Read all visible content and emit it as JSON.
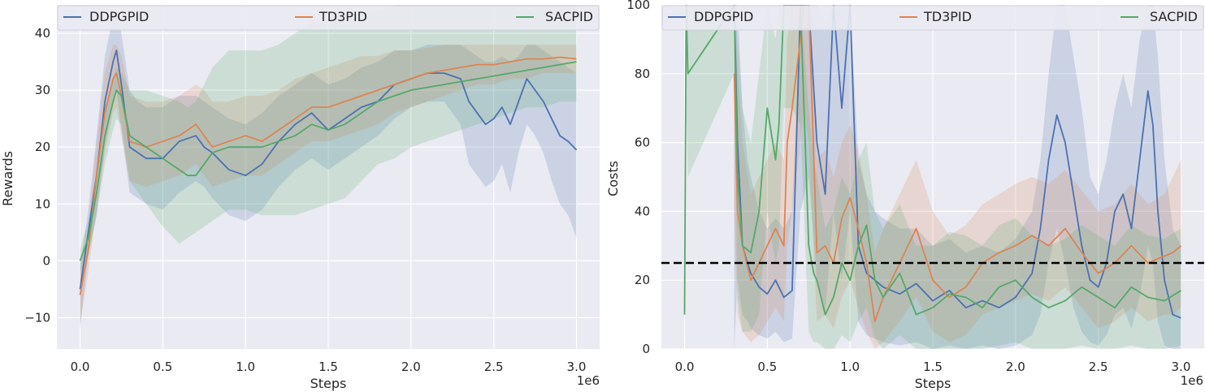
{
  "colors": {
    "plot_bg": "#eaeaf2",
    "grid": "#ffffff",
    "DDPGPID": "#4c72b0",
    "TD3PID": "#dd8452",
    "SACPID": "#55a868",
    "threshold": "#000000"
  },
  "chart_data": [
    {
      "type": "line",
      "xlabel": "Steps",
      "ylabel": "Rewards",
      "x_offset_label": "1e6",
      "xlim": [
        -0.14,
        3.14
      ],
      "ylim": [
        -15.5,
        45
      ],
      "xticks": [
        0.0,
        0.5,
        1.0,
        1.5,
        2.0,
        2.5,
        3.0
      ],
      "xtick_labels": [
        "0.0",
        "0.5",
        "1.0",
        "1.5",
        "2.0",
        "2.5",
        "3.0"
      ],
      "yticks": [
        -10,
        0,
        10,
        20,
        30,
        40
      ],
      "ytick_labels": [
        "−10",
        "0",
        "10",
        "20",
        "30",
        "40"
      ],
      "grid": true,
      "legend": {
        "placement": "top",
        "entries": [
          "DDPGPID",
          "TD3PID",
          "SACPID"
        ]
      },
      "series": [
        {
          "name": "DDPGPID",
          "x": [
            0.0,
            0.05,
            0.1,
            0.15,
            0.2,
            0.22,
            0.25,
            0.3,
            0.35,
            0.4,
            0.5,
            0.6,
            0.7,
            0.75,
            0.8,
            0.9,
            1.0,
            1.1,
            1.2,
            1.3,
            1.4,
            1.5,
            1.6,
            1.7,
            1.8,
            1.9,
            2.0,
            2.1,
            2.2,
            2.3,
            2.35,
            2.4,
            2.45,
            2.5,
            2.55,
            2.6,
            2.65,
            2.7,
            2.75,
            2.8,
            2.85,
            2.9,
            2.95,
            3.0
          ],
          "values": [
            -5,
            5,
            15,
            28,
            35,
            37,
            31,
            20,
            19,
            18,
            18,
            21,
            22,
            20,
            19,
            16,
            15,
            17,
            21,
            24,
            26,
            23,
            25,
            27,
            28,
            31,
            32,
            33,
            33,
            32,
            28,
            26,
            24,
            25,
            27,
            24,
            28,
            32,
            30,
            28,
            25,
            22,
            21,
            19.5
          ],
          "upper": [
            -1,
            9,
            22,
            36,
            43,
            44,
            40,
            30,
            28,
            27,
            27,
            29,
            29,
            28,
            27,
            25,
            24,
            26,
            29,
            31,
            33,
            31,
            32,
            34,
            35,
            37,
            37,
            38,
            38,
            38,
            37,
            36,
            35,
            35,
            36,
            35,
            36,
            38,
            38,
            37,
            36,
            35,
            34,
            33
          ],
          "lower": [
            -12,
            1,
            8,
            20,
            28,
            30,
            23,
            12,
            11,
            10,
            9,
            12,
            14,
            13,
            11,
            8,
            7,
            9,
            13,
            16,
            18,
            16,
            18,
            20,
            22,
            25,
            27,
            28,
            28,
            24,
            17,
            15,
            13,
            14,
            17,
            12,
            19,
            24,
            22,
            19,
            14,
            10,
            8,
            4
          ]
        },
        {
          "name": "TD3PID",
          "x": [
            0.0,
            0.05,
            0.1,
            0.15,
            0.2,
            0.22,
            0.25,
            0.3,
            0.4,
            0.5,
            0.6,
            0.65,
            0.7,
            0.75,
            0.8,
            0.9,
            1.0,
            1.1,
            1.2,
            1.3,
            1.4,
            1.5,
            1.6,
            1.7,
            1.8,
            1.9,
            2.0,
            2.1,
            2.2,
            2.3,
            2.4,
            2.5,
            2.6,
            2.7,
            2.8,
            2.9,
            3.0
          ],
          "values": [
            -6,
            2,
            15,
            26,
            32,
            33,
            29,
            21,
            20,
            21,
            22,
            23,
            24,
            22,
            20,
            21,
            22,
            21,
            23,
            25,
            27,
            27,
            28,
            29,
            30,
            31,
            32,
            33,
            33.5,
            34,
            34.5,
            34.5,
            35,
            35.5,
            35.5,
            35.8,
            35.5
          ],
          "upper": [
            -2,
            6,
            21,
            33,
            38,
            38,
            36,
            29,
            28,
            28,
            29,
            30,
            31,
            30,
            28,
            28,
            29,
            29,
            30,
            32,
            33,
            34,
            35,
            36,
            36,
            37,
            37,
            37.5,
            38,
            38,
            38,
            38,
            38,
            38,
            38,
            38,
            38
          ],
          "lower": [
            -11,
            -2,
            9,
            19,
            26,
            27,
            22,
            14,
            13,
            14,
            15,
            16,
            17,
            15,
            13,
            14,
            15,
            15,
            17,
            19,
            21,
            21,
            22,
            23,
            24,
            26,
            27,
            28,
            29,
            30,
            31,
            31,
            32,
            32,
            33,
            33,
            33
          ]
        },
        {
          "name": "SACPID",
          "x": [
            0.0,
            0.05,
            0.1,
            0.15,
            0.2,
            0.22,
            0.25,
            0.3,
            0.4,
            0.5,
            0.6,
            0.65,
            0.7,
            0.75,
            0.8,
            0.9,
            1.0,
            1.1,
            1.2,
            1.3,
            1.4,
            1.5,
            1.6,
            1.7,
            1.8,
            1.9,
            2.0,
            2.1,
            2.2,
            2.3,
            2.4,
            2.5,
            2.6,
            2.7,
            2.8,
            2.9,
            3.0
          ],
          "values": [
            0,
            4,
            12,
            22,
            28,
            30,
            29,
            22,
            20,
            18,
            16,
            15,
            15,
            17,
            19,
            20,
            20,
            20,
            21,
            22,
            24,
            23,
            24,
            26,
            28,
            29,
            30,
            30.5,
            31,
            31.5,
            32,
            32.5,
            33,
            33.5,
            34,
            34.5,
            35
          ],
          "upper": [
            2,
            7,
            16,
            27,
            32,
            34,
            33,
            30,
            30,
            29,
            28,
            27,
            28,
            31,
            34,
            37,
            37,
            37,
            38,
            40,
            42,
            42,
            43,
            44,
            44,
            45,
            45,
            45,
            45,
            45,
            45,
            45,
            45,
            45,
            45,
            45,
            45
          ],
          "lower": [
            -2,
            1,
            8,
            17,
            23,
            25,
            24,
            14,
            10,
            6,
            3,
            4,
            5,
            6,
            7,
            9,
            9,
            8,
            8,
            8,
            9,
            10,
            11,
            14,
            17,
            18,
            20,
            21,
            22,
            23,
            24,
            25,
            26,
            27,
            27,
            28,
            28
          ]
        }
      ]
    },
    {
      "type": "line",
      "xlabel": "Steps",
      "ylabel": "Costs",
      "x_offset_label": "1e6",
      "xlim": [
        -0.14,
        3.14
      ],
      "ylim": [
        0,
        100
      ],
      "xticks": [
        0.0,
        0.5,
        1.0,
        1.5,
        2.0,
        2.5,
        3.0
      ],
      "xtick_labels": [
        "0.0",
        "0.5",
        "1.0",
        "1.5",
        "2.0",
        "2.5",
        "3.0"
      ],
      "yticks": [
        0,
        20,
        40,
        60,
        80,
        100
      ],
      "ytick_labels": [
        "0",
        "20",
        "40",
        "60",
        "80",
        "100"
      ],
      "grid": true,
      "threshold": 25,
      "legend": {
        "placement": "top",
        "entries": [
          "DDPGPID",
          "TD3PID",
          "SACPID"
        ]
      },
      "series": [
        {
          "name": "DDPGPID",
          "x": [
            0.3,
            0.32,
            0.35,
            0.38,
            0.4,
            0.45,
            0.5,
            0.55,
            0.6,
            0.65,
            0.7,
            0.75,
            0.8,
            0.85,
            0.9,
            0.95,
            1.0,
            1.05,
            1.1,
            1.15,
            1.2,
            1.3,
            1.4,
            1.5,
            1.6,
            1.7,
            1.8,
            1.9,
            2.0,
            2.1,
            2.15,
            2.2,
            2.25,
            2.3,
            2.35,
            2.4,
            2.45,
            2.5,
            2.55,
            2.6,
            2.65,
            2.7,
            2.75,
            2.8,
            2.83,
            2.86,
            2.9,
            2.95,
            3.0
          ],
          "values": [
            100,
            60,
            30,
            25,
            22,
            18,
            16,
            20,
            15,
            17,
            100,
            100,
            60,
            45,
            100,
            70,
            100,
            30,
            22,
            20,
            18,
            16,
            19,
            14,
            17,
            12,
            14,
            12,
            15,
            22,
            35,
            55,
            68,
            60,
            45,
            30,
            20,
            18,
            25,
            40,
            45,
            35,
            55,
            75,
            65,
            40,
            20,
            10,
            9
          ],
          "upper": [
            100,
            100,
            70,
            55,
            50,
            40,
            35,
            38,
            35,
            40,
            100,
            100,
            100,
            95,
            100,
            100,
            100,
            55,
            45,
            40,
            38,
            35,
            35,
            30,
            32,
            28,
            30,
            28,
            32,
            40,
            55,
            80,
            100,
            100,
            85,
            70,
            50,
            45,
            55,
            70,
            80,
            70,
            90,
            100,
            100,
            85,
            55,
            35,
            30
          ],
          "lower": [
            0,
            20,
            10,
            8,
            6,
            4,
            3,
            5,
            2,
            3,
            40,
            50,
            20,
            10,
            40,
            20,
            40,
            8,
            4,
            3,
            2,
            1,
            2,
            0,
            1,
            0,
            1,
            0,
            1,
            4,
            10,
            25,
            35,
            25,
            12,
            5,
            2,
            1,
            4,
            10,
            12,
            6,
            15,
            30,
            25,
            8,
            1,
            0,
            0
          ]
        },
        {
          "name": "TD3PID",
          "x": [
            0.3,
            0.32,
            0.35,
            0.4,
            0.45,
            0.5,
            0.55,
            0.6,
            0.62,
            0.65,
            0.7,
            0.72,
            0.75,
            0.8,
            0.85,
            0.9,
            0.95,
            1.0,
            1.05,
            1.1,
            1.15,
            1.2,
            1.3,
            1.4,
            1.5,
            1.6,
            1.7,
            1.8,
            1.9,
            2.0,
            2.1,
            2.2,
            2.3,
            2.4,
            2.5,
            2.6,
            2.7,
            2.8,
            2.9,
            2.95,
            3.0
          ],
          "values": [
            80,
            40,
            30,
            20,
            25,
            30,
            35,
            30,
            60,
            70,
            90,
            100,
            100,
            28,
            30,
            25,
            38,
            44,
            35,
            25,
            8,
            15,
            25,
            35,
            20,
            15,
            18,
            25,
            28,
            30,
            33,
            30,
            35,
            28,
            22,
            25,
            30,
            25,
            27,
            28,
            30
          ],
          "upper": [
            100,
            80,
            60,
            45,
            50,
            55,
            60,
            55,
            90,
            100,
            100,
            100,
            100,
            55,
            58,
            50,
            60,
            65,
            58,
            45,
            28,
            35,
            45,
            55,
            40,
            33,
            36,
            42,
            45,
            48,
            50,
            48,
            52,
            46,
            40,
            42,
            48,
            42,
            45,
            50,
            55
          ],
          "lower": [
            40,
            10,
            5,
            2,
            4,
            8,
            12,
            8,
            30,
            40,
            60,
            70,
            60,
            8,
            10,
            6,
            15,
            20,
            12,
            5,
            0,
            2,
            8,
            15,
            5,
            2,
            4,
            10,
            12,
            14,
            16,
            14,
            18,
            12,
            6,
            8,
            12,
            8,
            10,
            10,
            12
          ]
        },
        {
          "name": "SACPID",
          "x": [
            0.0,
            0.01,
            0.02,
            0.3,
            0.32,
            0.35,
            0.4,
            0.45,
            0.5,
            0.55,
            0.57,
            0.6,
            0.65,
            0.7,
            0.75,
            0.78,
            0.8,
            0.85,
            0.9,
            0.95,
            1.0,
            1.05,
            1.1,
            1.15,
            1.2,
            1.3,
            1.4,
            1.5,
            1.6,
            1.7,
            1.8,
            1.9,
            2.0,
            2.1,
            2.2,
            2.3,
            2.4,
            2.5,
            2.6,
            2.7,
            2.8,
            2.9,
            3.0
          ],
          "values": [
            10,
            100,
            80,
            100,
            50,
            30,
            28,
            40,
            70,
            55,
            65,
            100,
            100,
            100,
            30,
            22,
            20,
            10,
            15,
            25,
            20,
            30,
            36,
            20,
            15,
            22,
            10,
            12,
            16,
            15,
            12,
            18,
            20,
            15,
            12,
            14,
            18,
            15,
            12,
            18,
            15,
            14,
            17
          ],
          "upper": [
            30,
            100,
            100,
            100,
            90,
            70,
            60,
            80,
            100,
            90,
            100,
            100,
            100,
            100,
            70,
            55,
            50,
            35,
            40,
            50,
            45,
            55,
            60,
            40,
            35,
            42,
            30,
            30,
            34,
            33,
            30,
            36,
            38,
            33,
            30,
            32,
            36,
            33,
            30,
            36,
            33,
            32,
            35
          ],
          "lower": [
            0,
            70,
            50,
            80,
            15,
            5,
            5,
            10,
            40,
            25,
            30,
            70,
            70,
            65,
            5,
            2,
            2,
            0,
            0,
            4,
            2,
            8,
            12,
            3,
            0,
            4,
            0,
            0,
            0,
            0,
            0,
            1,
            2,
            0,
            0,
            0,
            1,
            0,
            0,
            1,
            0,
            0,
            1
          ]
        }
      ]
    }
  ]
}
